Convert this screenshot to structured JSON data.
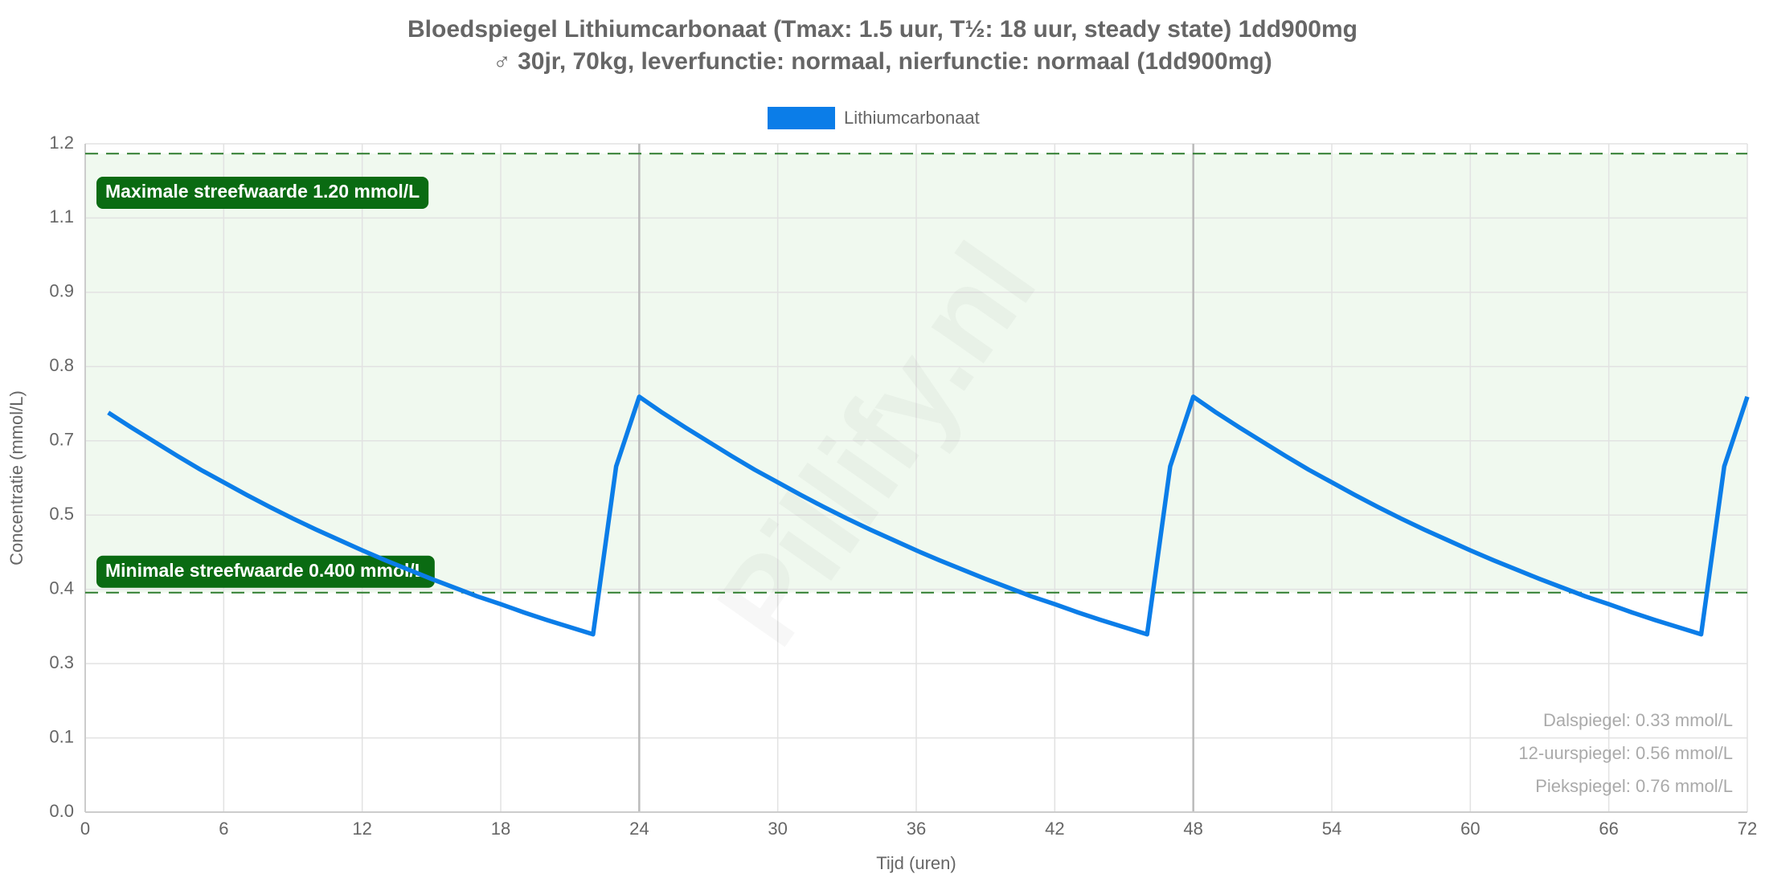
{
  "chart_data": {
    "type": "line",
    "title": "Bloedspiegel Lithiumcarbonaat (Tmax: 1.5 uur, T½: 18 uur, steady state) 1dd900mg",
    "subtitle": "♂ 30jr, 70kg, leverfunctie: normaal, nierfunctie: normaal (1dd900mg)",
    "x_label": "Tijd (uren)",
    "y_label": "Concentratie (mmol/L)",
    "watermark": "Pillify.nl",
    "x": [
      1,
      2,
      3,
      4,
      5,
      6,
      7,
      8,
      9,
      10,
      11,
      12,
      13,
      14,
      15,
      16,
      17,
      18,
      19,
      20,
      21,
      22,
      23,
      24,
      25,
      26,
      27,
      28,
      29,
      30,
      31,
      32,
      33,
      34,
      35,
      36,
      37,
      38,
      39,
      40,
      41,
      42,
      43,
      44,
      45,
      46,
      47,
      48,
      49,
      50,
      51,
      52,
      53,
      54,
      55,
      56,
      57,
      58,
      59,
      60,
      61,
      62,
      63,
      64,
      65,
      66,
      67,
      68,
      69,
      70,
      71,
      72
    ],
    "series": [
      {
        "name": "Lithiumcarbonaat",
        "color": "#0b7de8",
        "values": [
          0.728,
          0.701,
          0.675,
          0.649,
          0.624,
          0.601,
          0.578,
          0.556,
          0.535,
          0.515,
          0.496,
          0.477,
          0.459,
          0.442,
          0.425,
          0.409,
          0.393,
          0.379,
          0.364,
          0.35,
          0.337,
          0.324,
          0.63,
          0.757,
          0.728,
          0.701,
          0.675,
          0.649,
          0.624,
          0.601,
          0.578,
          0.556,
          0.535,
          0.515,
          0.496,
          0.477,
          0.459,
          0.442,
          0.425,
          0.409,
          0.393,
          0.379,
          0.364,
          0.35,
          0.337,
          0.324,
          0.63,
          0.757,
          0.728,
          0.701,
          0.675,
          0.649,
          0.624,
          0.601,
          0.578,
          0.556,
          0.535,
          0.515,
          0.496,
          0.477,
          0.459,
          0.442,
          0.425,
          0.409,
          0.393,
          0.379,
          0.364,
          0.35,
          0.337,
          0.324,
          0.63,
          0.757
        ]
      }
    ],
    "xlim": [
      0,
      72
    ],
    "xticks": [
      0,
      6,
      12,
      18,
      24,
      30,
      36,
      42,
      48,
      54,
      60,
      66,
      72
    ],
    "ylim": [
      0,
      1.218
    ],
    "yticks": [
      {
        "value": 0,
        "label": "0.0"
      },
      {
        "value": 0.1353,
        "label": "0.1"
      },
      {
        "value": 0.2707,
        "label": "0.3"
      },
      {
        "value": 0.406,
        "label": "0.4"
      },
      {
        "value": 0.5413,
        "label": "0.5"
      },
      {
        "value": 0.6767,
        "label": "0.7"
      },
      {
        "value": 0.812,
        "label": "0.8"
      },
      {
        "value": 0.9473,
        "label": "0.9"
      },
      {
        "value": 1.0827,
        "label": "1.1"
      },
      {
        "value": 1.218,
        "label": "1.2"
      }
    ],
    "grid": true,
    "vertical_lines": [
      24,
      48
    ],
    "reference_lines": [
      {
        "value": 1.2,
        "label": "Maximale streefwaarde 1.20 mmol/L"
      },
      {
        "value": 0.4,
        "label": "Minimale streefwaarde 0.400 mmol/L"
      }
    ],
    "annotations": [
      "Dalspiegel: 0.33 mmol/L",
      "12-uurspiegel: 0.56 mmol/L",
      "Piekspiegel: 0.76 mmol/L"
    ]
  }
}
